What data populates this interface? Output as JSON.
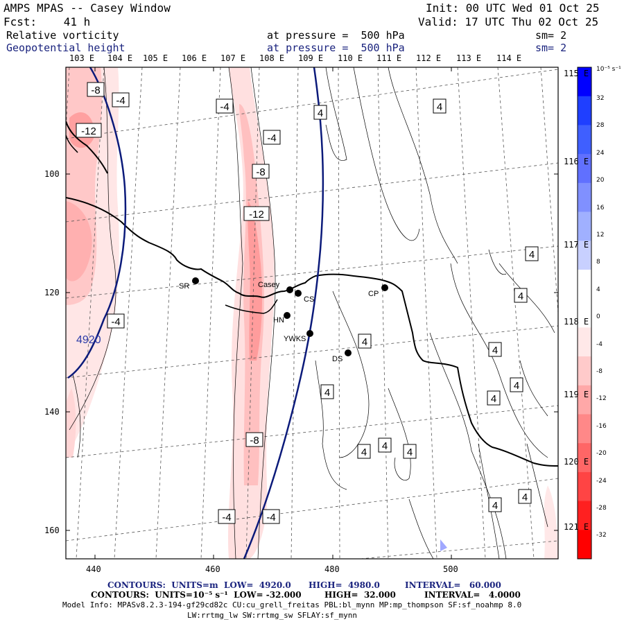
{
  "header": {
    "title": "AMPS MPAS -- Casey Window",
    "forecast": "Fcst:    41 h",
    "init": "Init: 00 UTC Wed 01 Oct 25",
    "valid": "Valid: 17 UTC Thu 02 Oct 25",
    "field1": "Relative vorticity",
    "field1_level": "at pressure =  500 hPa",
    "field1_sm": "sm= 2",
    "field2": "Geopotential height",
    "field2_level": "at pressure =  500 hPa",
    "field2_sm": "sm= 2"
  },
  "lon_labels_top": [
    "103 E",
    "104 E",
    "105 E",
    "106 E",
    "107 E",
    "108 E",
    "109 E",
    "110 E",
    "111 E",
    "112 E",
    "113 E",
    "114 E"
  ],
  "lon_labels_right": [
    "115 E",
    "116 E",
    "117 E",
    "118 E",
    "119 E",
    "120 E",
    "121 E"
  ],
  "axis": {
    "x_ticks": [
      "440",
      "460",
      "480",
      "500"
    ],
    "y_ticks": [
      "100",
      "120",
      "140",
      "160"
    ]
  },
  "stations": [
    {
      "label": "SR"
    },
    {
      "label": "Casey"
    },
    {
      "label": "CS"
    },
    {
      "label": "HN"
    },
    {
      "label": "YWKS"
    },
    {
      "label": "CP"
    },
    {
      "label": "DS"
    }
  ],
  "contour_labels": {
    "vort": [
      "-8",
      "-4",
      "-4",
      "-12",
      "-4",
      "-8",
      "-12",
      "-4",
      "-8",
      "-4",
      "-4",
      "4",
      "4",
      "4",
      "4",
      "4",
      "4",
      "4",
      "4",
      "4",
      "4",
      "4",
      "4",
      "4",
      "4"
    ],
    "height": "4920"
  },
  "colorbar": {
    "unit": "10⁻⁵ s⁻¹",
    "labels": [
      "32",
      "28",
      "24",
      "20",
      "16",
      "12",
      "8",
      "4",
      "0",
      "-4",
      "-8",
      "-12",
      "-16",
      "-20",
      "-24",
      "-28",
      "-32"
    ],
    "colors": [
      "#0000ff",
      "#1f3fff",
      "#3f5fff",
      "#6070ff",
      "#8090ff",
      "#a0b0ff",
      "#c8d0ff",
      "#ffffff",
      "#ffffff",
      "#ffe8e8",
      "#ffcaca",
      "#ffa8a8",
      "#ff8888",
      "#ff6666",
      "#ff4444",
      "#ff2020",
      "#ff0000"
    ]
  },
  "footer": {
    "line1_a": "CONTOURS:  UNITS=m  LOW=  4920.0",
    "line1_b": "HIGH=  4980.0",
    "line1_c": "INTERVAL=   60.000",
    "line2_a": "CONTOURS:  UNITS=10⁻⁵ s⁻¹  LOW= -32.000",
    "line2_b": "HIGH=  32.000",
    "line2_c": "INTERVAL=   4.0000",
    "model_info": "Model Info: MPASv8.2.3-194-gf29cd82c CU:cu_grell_freitas PBL:bl_mynn MP:mp_thompson SF:sf_noahmp 8.0",
    "model_info2": "LW:rrtmg_lw SW:rrtmg_sw SFLAY:sf_mynn"
  }
}
